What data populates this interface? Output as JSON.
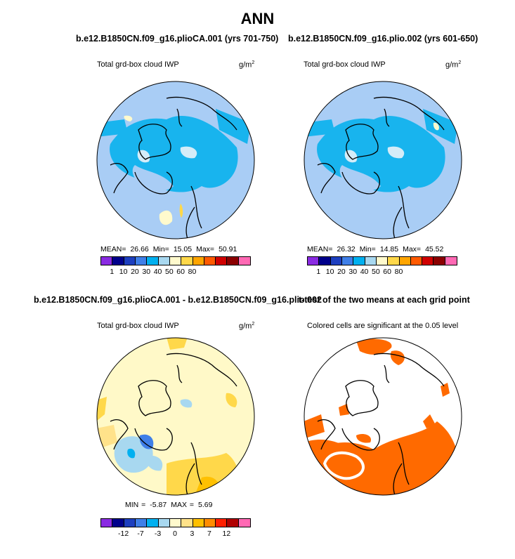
{
  "title": "ANN",
  "panels": [
    {
      "id": "case1",
      "title": "b.e12.B1850CN.f09_g16.plioCA.001 (yrs 701-750)",
      "subtitle": "Total grd-box cloud IWP",
      "units": "g/m",
      "units_exp": "2",
      "stats": {
        "mean_label": "MEAN=",
        "mean": "26.66",
        "min_label": "Min=",
        "min": "15.05",
        "max_label": "Max=",
        "max": "50.91"
      },
      "legend_ticks": [
        "1",
        "10",
        "20",
        "30",
        "40",
        "50",
        "60",
        "80"
      ]
    },
    {
      "id": "case2",
      "title": "b.e12.B1850CN.f09_g16.plio.002 (yrs 601-650)",
      "subtitle": "Total grd-box cloud IWP",
      "units": "g/m",
      "units_exp": "2",
      "stats": {
        "mean_label": "MEAN=",
        "mean": "26.32",
        "min_label": "Min=",
        "min": "14.85",
        "max_label": "Max=",
        "max": "45.52"
      },
      "legend_ticks": [
        "1",
        "10",
        "20",
        "30",
        "40",
        "50",
        "60",
        "80"
      ]
    },
    {
      "id": "difference",
      "title": "b.e12.B1850CN.f09_g16.plioCA.001 - b.e12.B1850CN.f09_g16.plio.002",
      "subtitle": "Total grd-box cloud IWP",
      "units": "g/m",
      "units_exp": "2",
      "stats": {
        "min_label": "MIN =",
        "min": "-5.87",
        "max_label": "MAX =",
        "max": "5.69"
      },
      "legend_ticks": [
        "-12",
        "-7",
        "-3",
        "0",
        "3",
        "7",
        "12"
      ]
    },
    {
      "id": "ttest",
      "title": "t-test of the two means at each grid point",
      "subtitle": "Colored cells are significant at the 0.05 level"
    }
  ],
  "colors": {
    "abs_scale": [
      "#8a2be2",
      "#00008b",
      "#1d3fbf",
      "#3f7fe8",
      "#00b0f0",
      "#a8d8f0",
      "#fffacd",
      "#ffd84a",
      "#ffa500",
      "#ff5a00",
      "#d00000",
      "#8b0000",
      "#ff69b4"
    ],
    "diff_scale": [
      "#8a2be2",
      "#00008b",
      "#1d3fbf",
      "#3f7fe8",
      "#00b0f0",
      "#a8d8f0",
      "#fffacd",
      "#ffe28a",
      "#ffc000",
      "#ff8c00",
      "#ff2000",
      "#b00000",
      "#ff69b4"
    ],
    "map_base_abs": "#a9cdf5",
    "map_arctic_abs": "#18b4ee",
    "map_base_diff": "#fff9c8",
    "significant": "#ff6a00"
  }
}
